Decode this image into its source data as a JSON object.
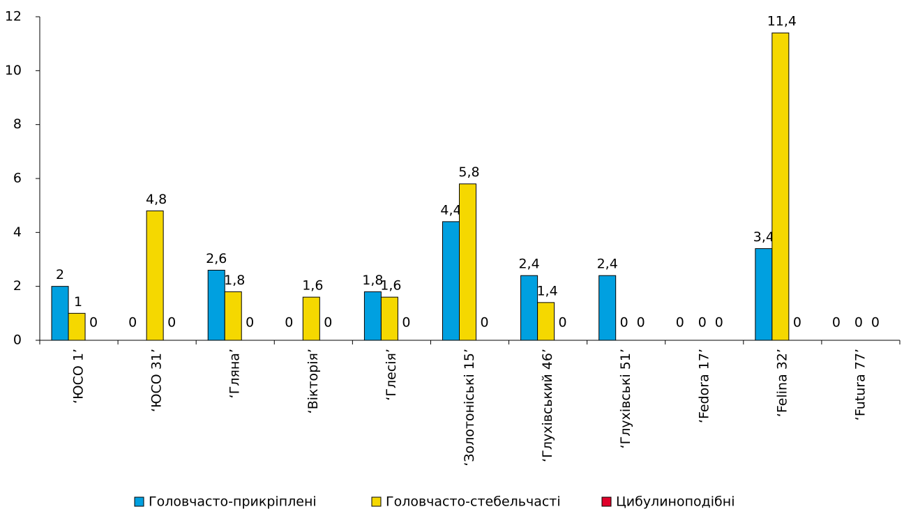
{
  "chart_data": {
    "type": "bar",
    "categories": [
      "‘ЮСО 1’",
      "‘ЮСО 31’",
      "‘Гляна’",
      "‘Вікторія’",
      "‘Глесія’",
      "‘Золотоніські 15’",
      "‘Глухівський 46’",
      "‘Глухівські 51’",
      "‘Fedora 17’",
      "‘Felina 32’",
      "‘Futura 77’"
    ],
    "series": [
      {
        "name": "Головчасто-прикріплені",
        "color": "#00a0e0",
        "values": [
          2,
          0,
          2.6,
          0,
          1.8,
          4.4,
          2.4,
          2.4,
          0,
          3.4,
          0
        ],
        "value_labels": [
          "2",
          "0",
          "2,6",
          "0",
          "1,8",
          "4,4",
          "2,4",
          "2,4",
          "0",
          "3,4",
          "0"
        ]
      },
      {
        "name": "Головчасто-стебельчасті",
        "color": "#f5d800",
        "values": [
          1,
          4.8,
          1.8,
          1.6,
          1.6,
          5.8,
          1.4,
          0,
          0,
          11.4,
          0
        ],
        "value_labels": [
          "1",
          "4,8",
          "1,8",
          "1,6",
          "1,6",
          "5,8",
          "1,4",
          "0",
          "0",
          "11,4",
          "0"
        ]
      },
      {
        "name": "Цибулиноподібні",
        "color": "#e0002a",
        "values": [
          0,
          0,
          0,
          0,
          0,
          0,
          0,
          0,
          0,
          0,
          0
        ],
        "value_labels": [
          "0",
          "0",
          "0",
          "0",
          "0",
          "0",
          "0",
          "0",
          "0",
          "0",
          "0"
        ]
      }
    ],
    "ylim": [
      0,
      12
    ],
    "yticks": [
      0,
      2,
      4,
      6,
      8,
      10,
      12
    ],
    "grid": false,
    "legend": "bottom"
  }
}
